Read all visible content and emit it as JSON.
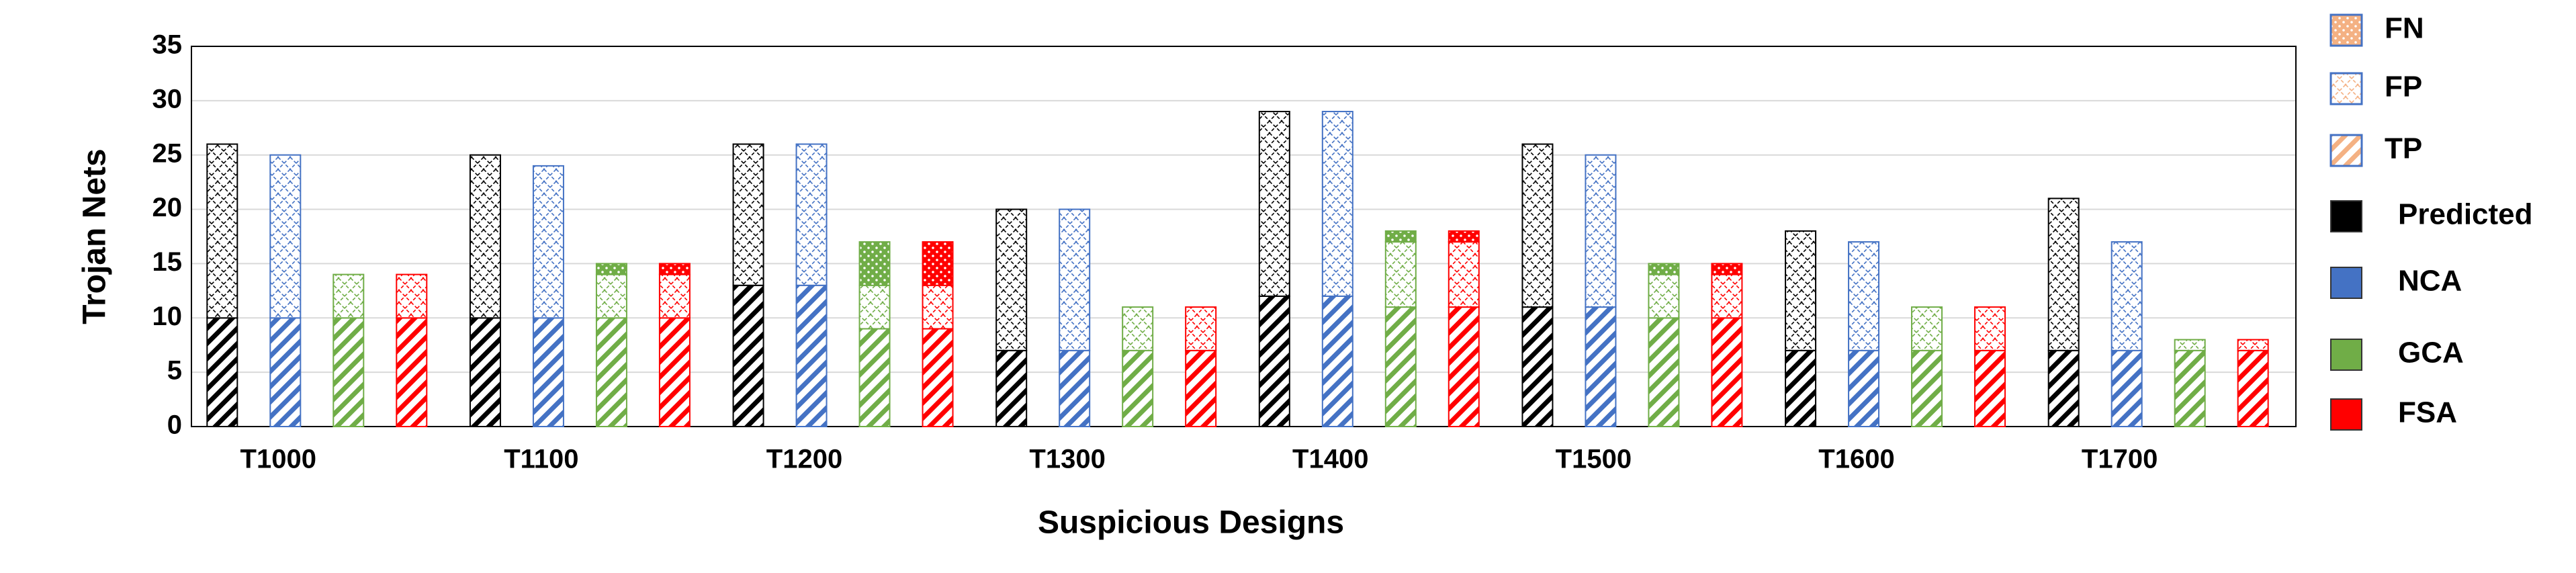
{
  "chart_data": {
    "type": "stacked-grouped-bar",
    "x_label": "Suspicious Designs",
    "y_label": "Trojan Nets",
    "categories": [
      "T1000",
      "T1100",
      "T1200",
      "T1300",
      "T1400",
      "T1500",
      "T1600",
      "T1700"
    ],
    "stack_names": [
      "TP",
      "FP",
      "FN"
    ],
    "stack_legend_color": "#f4b183",
    "stack_legend_border": "#4472c4",
    "series": [
      {
        "name": "Predicted",
        "color": "#000000",
        "stack": [
          [
            10,
            10,
            13,
            7,
            12,
            11,
            7,
            7
          ],
          [
            16,
            15,
            13,
            13,
            17,
            15,
            11,
            14
          ],
          [
            0,
            0,
            0,
            0,
            0,
            0,
            0,
            0
          ]
        ]
      },
      {
        "name": "NCA",
        "color": "#4472c4",
        "stack": [
          [
            10,
            10,
            13,
            7,
            12,
            11,
            7,
            7
          ],
          [
            15,
            14,
            13,
            13,
            17,
            14,
            10,
            10
          ],
          [
            0,
            0,
            0,
            0,
            0,
            0,
            0,
            0
          ]
        ]
      },
      {
        "name": "GCA",
        "color": "#70ad47",
        "stack": [
          [
            10,
            10,
            9,
            7,
            11,
            10,
            7,
            7
          ],
          [
            4,
            4,
            4,
            4,
            6,
            4,
            4,
            1
          ],
          [
            0,
            1,
            4,
            0,
            1,
            1,
            0,
            0
          ]
        ]
      },
      {
        "name": "FSA",
        "color": "#ff0000",
        "stack": [
          [
            10,
            10,
            9,
            7,
            11,
            10,
            7,
            7
          ],
          [
            4,
            4,
            4,
            4,
            6,
            4,
            4,
            1
          ],
          [
            0,
            1,
            4,
            0,
            1,
            1,
            0,
            0
          ]
        ]
      }
    ],
    "ylim": [
      0,
      35
    ],
    "yticks": [
      0,
      5,
      10,
      15,
      20,
      25,
      30,
      35
    ],
    "grid": true
  }
}
